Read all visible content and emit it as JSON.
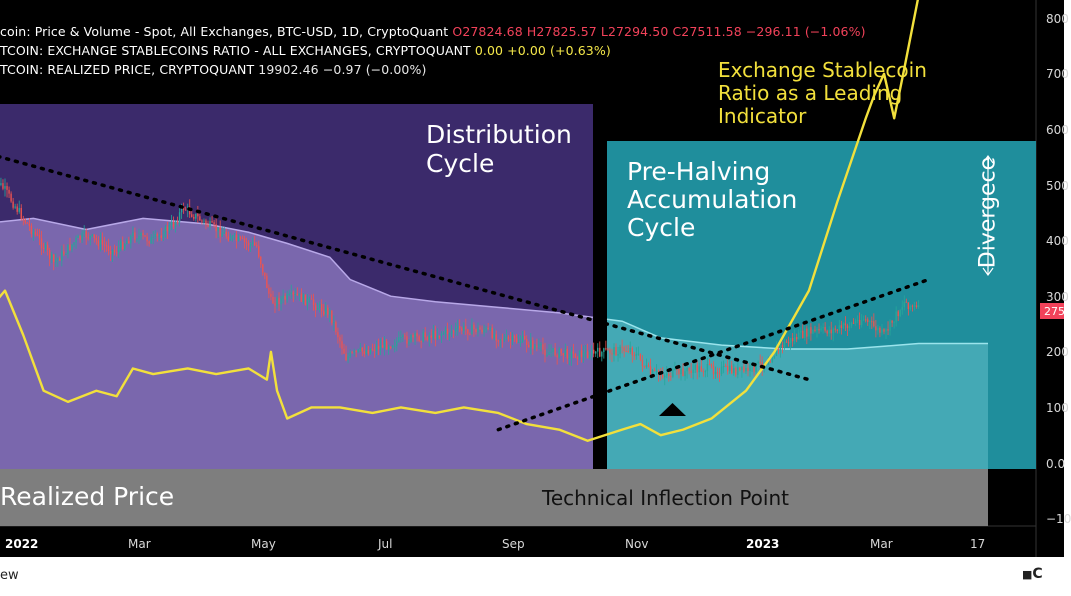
{
  "legend": {
    "line1": {
      "name": "coin: Price & Volume - Spot, All Exchanges, BTC-USD, 1D, CryptoQuant",
      "o": "O27824.68",
      "h": "H27825.57",
      "l": "L27294.50",
      "c": "C27511.58",
      "chg": "−296.11 (−1.06%)"
    },
    "line2": {
      "name": "TCOIN: EXCHANGE STABLECOINS RATIO - ALL EXCHANGES, CRYPTOQUANT",
      "value": "0.00 +0.00 (+0.63%)"
    },
    "line3": {
      "name": "TCOIN: REALIZED PRICE, CRYPTOQUANT",
      "value": "19902.46 −0.97 (−0.00%)"
    }
  },
  "annotations": {
    "distribution": "Distribution\nCycle",
    "accumulation": "Pre-Halving\nAccumulation\nCycle",
    "stablecoin": "Exchange Stablecoin\nRatio as a Leading\nIndicator",
    "divergence": "Divergece",
    "realized": "Realized Price",
    "inflection": "Technical Inflection Point"
  },
  "footer": {
    "left": "ew",
    "right": "C"
  },
  "colors": {
    "background": "#000000",
    "distribution_box": "#3b2a6b",
    "accumulation_box": "#1f8e9c",
    "realized_band_dist": "#7a67ad",
    "realized_band_acc": "#44a9b5",
    "stablecoin_line": "#f2e03c",
    "price_label_bg": "#f2425a",
    "up_candle": "#26a69a",
    "down_candle": "#ef5350",
    "bottom_band": "#7e7e7e"
  },
  "chart_data": {
    "type": "line",
    "x_axis": {
      "tick_labels": [
        "2022",
        "Mar",
        "May",
        "Jul",
        "Sep",
        "Nov",
        "2023",
        "Mar",
        "17"
      ]
    },
    "y_axis": {
      "tick_labels": [
        "800",
        "700",
        "600",
        "500",
        "400",
        "300",
        "200",
        "100",
        "0.0",
        "−10"
      ],
      "current_label": "275"
    },
    "price_label": "275",
    "series": [
      {
        "kind": "price",
        "x": [
          "2021-12-25",
          "2022-01-01",
          "2022-01-10",
          "2022-01-20",
          "2022-01-25",
          "2022-02-05",
          "2022-02-10",
          "2022-02-24",
          "2022-03-05",
          "2022-03-15",
          "2022-03-25",
          "2022-03-30",
          "2022-04-10",
          "2022-04-25",
          "2022-05-05",
          "2022-05-12",
          "2022-05-25",
          "2022-06-10",
          "2022-06-18",
          "2022-06-25",
          "2022-07-05",
          "2022-07-15",
          "2022-07-30",
          "2022-08-13",
          "2022-08-25",
          "2022-09-05",
          "2022-09-13",
          "2022-09-25",
          "2022-10-10",
          "2022-10-25",
          "2022-11-05",
          "2022-11-09",
          "2022-11-15",
          "2022-11-25",
          "2022-12-10",
          "2022-12-31",
          "2023-01-10",
          "2023-01-20",
          "2023-01-31",
          "2023-02-15",
          "2023-02-28",
          "2023-03-10",
          "2023-03-15",
          "2023-03-20",
          "2023-03-27"
        ],
        "y": [
          520,
          490,
          440,
          390,
          360,
          400,
          410,
          380,
          410,
          400,
          430,
          460,
          430,
          400,
          390,
          290,
          300,
          270,
          190,
          200,
          210,
          220,
          230,
          240,
          240,
          220,
          220,
          200,
          195,
          200,
          205,
          190,
          160,
          160,
          170,
          165,
          180,
          215,
          235,
          240,
          260,
          230,
          260,
          290,
          275
        ]
      },
      {
        "kind": "realized_price",
        "x": [
          "2021-12-20",
          "2022-01-15",
          "2022-02-10",
          "2022-03-10",
          "2022-04-10",
          "2022-05-01",
          "2022-05-20",
          "2022-06-10",
          "2022-06-20",
          "2022-07-10",
          "2022-08-01",
          "2022-09-01",
          "2022-10-01",
          "2022-11-01",
          "2022-11-20",
          "2022-12-20",
          "2023-01-20",
          "2023-02-20",
          "2023-03-10",
          "2023-03-27"
        ],
        "y": [
          430,
          440,
          420,
          440,
          430,
          415,
          395,
          370,
          330,
          300,
          290,
          280,
          270,
          255,
          225,
          212,
          205,
          205,
          210,
          215
        ]
      },
      {
        "kind": "stablecoin_ratio",
        "x": [
          "2021-12-20",
          "2021-12-25",
          "2022-01-01",
          "2022-01-10",
          "2022-01-15",
          "2022-01-20",
          "2022-02-01",
          "2022-02-15",
          "2022-02-25",
          "2022-03-05",
          "2022-03-15",
          "2022-04-01",
          "2022-04-15",
          "2022-05-01",
          "2022-05-10",
          "2022-05-12",
          "2022-05-15",
          "2022-05-20",
          "2022-06-01",
          "2022-06-15",
          "2022-07-01",
          "2022-07-15",
          "2022-08-01",
          "2022-08-15",
          "2022-09-01",
          "2022-09-15",
          "2022-10-01",
          "2022-10-15",
          "2022-11-01",
          "2022-11-10",
          "2022-11-20",
          "2022-12-01",
          "2022-12-15",
          "2023-01-01",
          "2023-01-15",
          "2023-02-01",
          "2023-02-15",
          "2023-03-01",
          "2023-03-05",
          "2023-03-10",
          "2023-03-15",
          "2023-03-20",
          "2023-03-27"
        ],
        "y": [
          300,
          280,
          310,
          230,
          180,
          130,
          110,
          130,
          120,
          170,
          160,
          170,
          160,
          170,
          150,
          200,
          130,
          80,
          100,
          100,
          90,
          100,
          90,
          100,
          90,
          70,
          60,
          40,
          60,
          70,
          50,
          60,
          80,
          130,
          200,
          310,
          470,
          620,
          660,
          700,
          620,
          710,
          840
        ]
      }
    ],
    "trend_lines": [
      {
        "name": "descending",
        "from": [
          "2021-12-20",
          560
        ],
        "to": [
          "2023-02-01",
          150
        ]
      },
      {
        "name": "ascending",
        "from": [
          "2022-09-01",
          60
        ],
        "to": [
          "2023-04-01",
          330
        ]
      }
    ]
  }
}
